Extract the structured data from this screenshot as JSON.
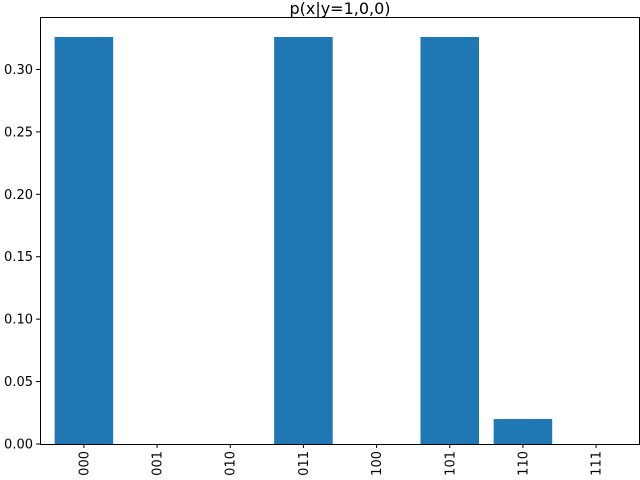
{
  "chart_data": {
    "type": "bar",
    "title": "p(x|y=1,0,0)",
    "xlabel": "",
    "ylabel": "",
    "categories": [
      "000",
      "001",
      "010",
      "011",
      "100",
      "101",
      "110",
      "111"
    ],
    "values": [
      0.326,
      0.0,
      0.0,
      0.326,
      0.0,
      0.326,
      0.02,
      0.0
    ],
    "ylim": [
      0,
      0.342
    ],
    "yticks": [
      0.0,
      0.05,
      0.1,
      0.15,
      0.2,
      0.25,
      0.3
    ],
    "ytick_labels": [
      "0.00",
      "0.05",
      "0.10",
      "0.15",
      "0.20",
      "0.25",
      "0.30"
    ],
    "grid": false,
    "bar_color": "#1f77b4",
    "xtick_rotation": "vertical"
  }
}
